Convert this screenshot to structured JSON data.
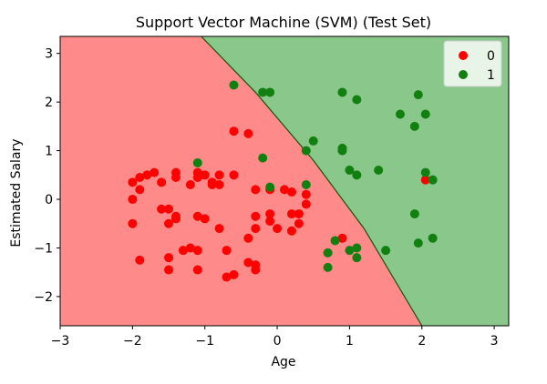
{
  "chart_data": {
    "type": "scatter",
    "title": "Support Vector Machine (SVM) (Test Set)",
    "xlabel": "Age",
    "ylabel": "Estimated Salary",
    "xlim": [
      -3,
      3.2
    ],
    "ylim": [
      -2.6,
      3.35
    ],
    "xticks": [
      -3,
      -2,
      -1,
      0,
      1,
      2,
      3
    ],
    "yticks": [
      -2,
      -1,
      0,
      1,
      2,
      3
    ],
    "grid": false,
    "legend_position": "top-right",
    "colors": {
      "region_0": "#ff8a8a",
      "region_1": "#8ac78a",
      "class_0": "#ff0000",
      "class_1": "#118011",
      "boundary": "#0a5a0a"
    },
    "decision_boundary": [
      [
        -1.05,
        3.35
      ],
      [
        -0.3,
        2.2
      ],
      [
        0.5,
        0.8
      ],
      [
        1.2,
        -0.6
      ],
      [
        2.0,
        -2.6
      ]
    ],
    "series": [
      {
        "name": "0",
        "color": "#ff0000",
        "points": [
          [
            -2.0,
            0.35
          ],
          [
            -1.9,
            0.45
          ],
          [
            -1.8,
            0.5
          ],
          [
            -1.7,
            0.55
          ],
          [
            -1.9,
            0.2
          ],
          [
            -2.0,
            0.0
          ],
          [
            -2.0,
            -0.5
          ],
          [
            -1.9,
            -1.25
          ],
          [
            -1.6,
            0.35
          ],
          [
            -1.4,
            0.55
          ],
          [
            -1.4,
            0.45
          ],
          [
            -1.2,
            0.3
          ],
          [
            -1.1,
            0.55
          ],
          [
            -1.1,
            0.45
          ],
          [
            -1.0,
            0.5
          ],
          [
            -0.9,
            0.35
          ],
          [
            -0.9,
            0.3
          ],
          [
            -0.8,
            0.3
          ],
          [
            -0.8,
            0.5
          ],
          [
            -0.6,
            0.5
          ],
          [
            -0.6,
            1.4
          ],
          [
            -0.4,
            1.35
          ],
          [
            -1.6,
            -0.2
          ],
          [
            -1.5,
            -0.2
          ],
          [
            -1.5,
            -0.5
          ],
          [
            -1.4,
            -0.35
          ],
          [
            -1.4,
            -0.4
          ],
          [
            -1.1,
            -0.35
          ],
          [
            -1.0,
            -0.4
          ],
          [
            -0.8,
            -0.6
          ],
          [
            -1.5,
            -1.2
          ],
          [
            -1.5,
            -1.45
          ],
          [
            -1.3,
            -1.05
          ],
          [
            -1.2,
            -1.0
          ],
          [
            -1.1,
            -1.05
          ],
          [
            -1.1,
            -1.45
          ],
          [
            -0.7,
            -1.05
          ],
          [
            -0.6,
            -1.55
          ],
          [
            -0.7,
            -1.6
          ],
          [
            -0.4,
            -0.8
          ],
          [
            -0.4,
            -1.3
          ],
          [
            -0.3,
            -1.35
          ],
          [
            -0.3,
            -1.45
          ],
          [
            -0.3,
            0.2
          ],
          [
            -0.3,
            -0.35
          ],
          [
            -0.3,
            -0.6
          ],
          [
            -0.1,
            -0.45
          ],
          [
            -0.1,
            -0.3
          ],
          [
            -0.1,
            0.2
          ],
          [
            0.0,
            -0.6
          ],
          [
            0.1,
            0.2
          ],
          [
            0.2,
            0.15
          ],
          [
            0.2,
            -0.3
          ],
          [
            0.2,
            -0.65
          ],
          [
            0.3,
            -0.5
          ],
          [
            0.3,
            -0.3
          ],
          [
            0.4,
            0.1
          ],
          [
            0.4,
            -0.1
          ],
          [
            0.9,
            -0.8
          ],
          [
            2.05,
            0.4
          ]
        ]
      },
      {
        "name": "1",
        "color": "#118011",
        "points": [
          [
            -0.6,
            2.35
          ],
          [
            -0.2,
            2.2
          ],
          [
            -0.1,
            2.2
          ],
          [
            -0.2,
            0.85
          ],
          [
            -1.1,
            0.75
          ],
          [
            -0.1,
            0.25
          ],
          [
            0.4,
            0.3
          ],
          [
            0.4,
            1.0
          ],
          [
            0.5,
            1.2
          ],
          [
            0.9,
            2.2
          ],
          [
            1.1,
            2.05
          ],
          [
            0.9,
            1.05
          ],
          [
            0.9,
            1.0
          ],
          [
            1.0,
            0.6
          ],
          [
            1.1,
            0.5
          ],
          [
            1.4,
            0.6
          ],
          [
            1.7,
            1.75
          ],
          [
            1.9,
            1.5
          ],
          [
            1.95,
            2.15
          ],
          [
            2.05,
            1.75
          ],
          [
            2.05,
            0.55
          ],
          [
            2.15,
            0.4
          ],
          [
            1.9,
            -0.3
          ],
          [
            1.95,
            -0.9
          ],
          [
            2.15,
            -0.8
          ],
          [
            1.5,
            -1.05
          ],
          [
            1.1,
            -1.0
          ],
          [
            1.0,
            -1.05
          ],
          [
            1.1,
            -1.2
          ],
          [
            0.7,
            -1.1
          ],
          [
            0.7,
            -1.4
          ],
          [
            0.8,
            -0.85
          ]
        ]
      }
    ]
  }
}
